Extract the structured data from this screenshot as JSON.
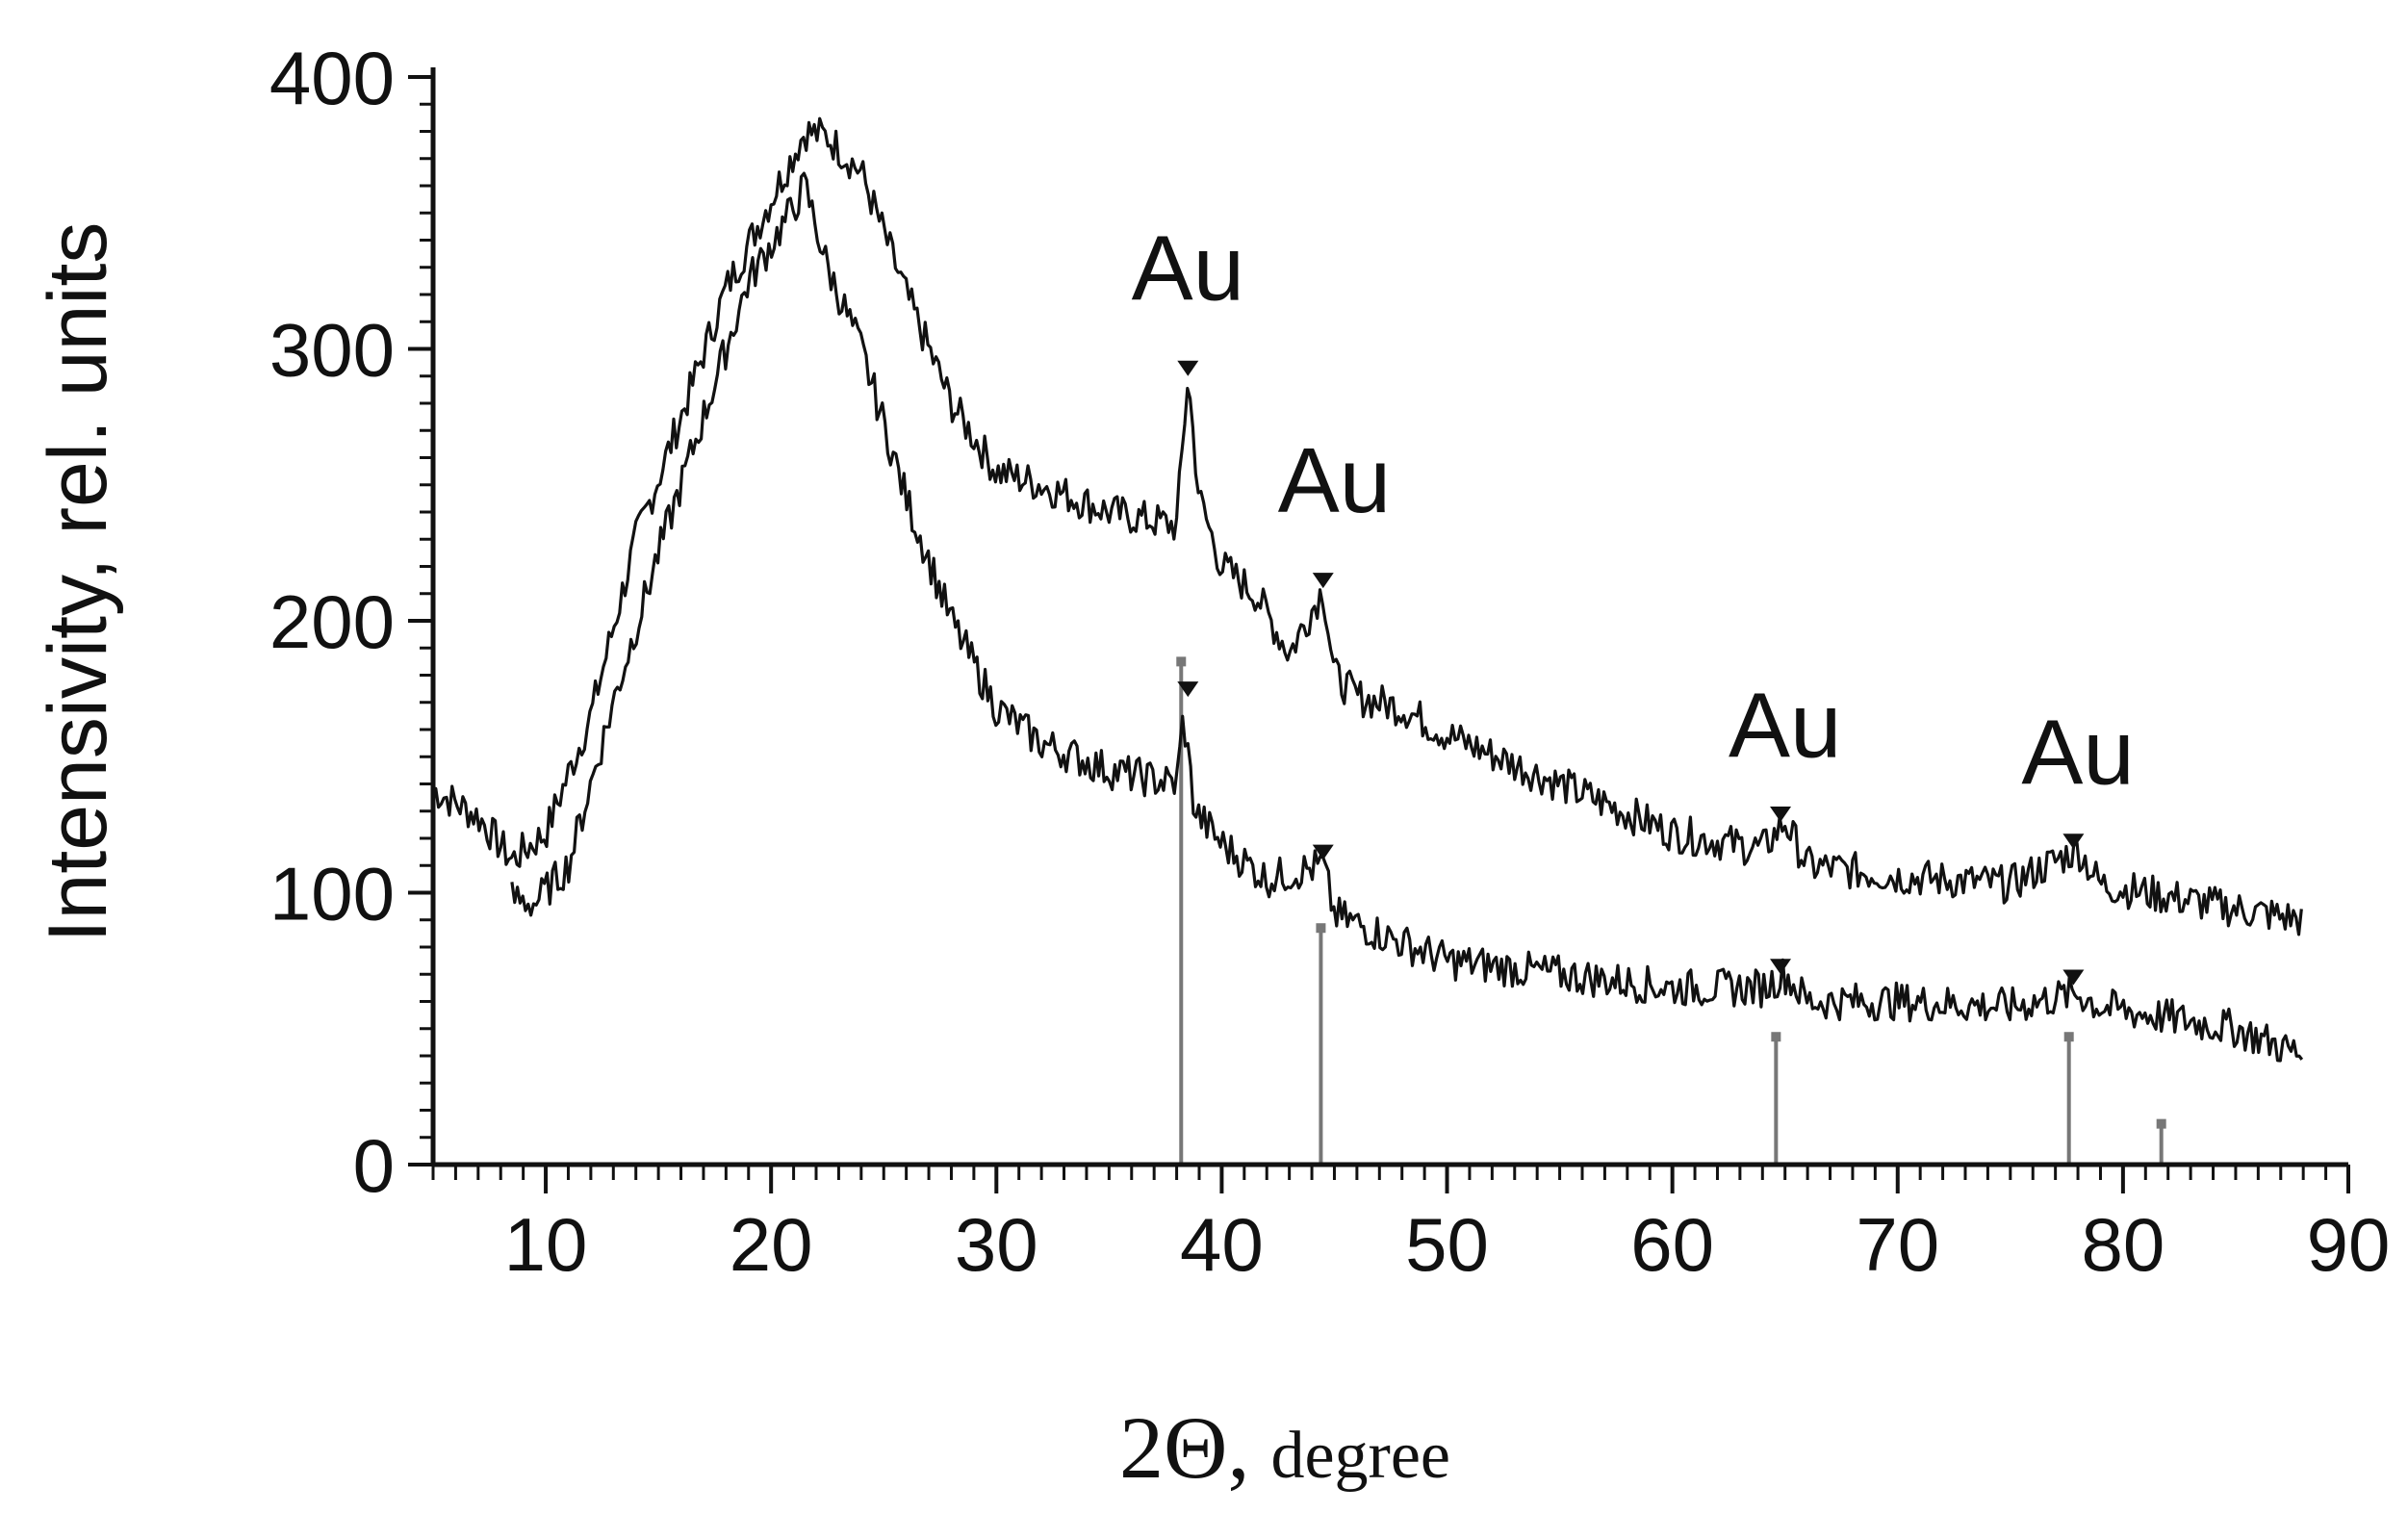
{
  "chart_data": {
    "type": "line",
    "title": "",
    "xlabel": "2Θ, degree",
    "xlabel_main": "2Θ,",
    "xlabel_unit": "degree",
    "ylabel": "Intensivity, rel. units",
    "xlim": [
      5,
      90
    ],
    "ylim": [
      0,
      400
    ],
    "x_ticks": [
      10,
      20,
      30,
      40,
      50,
      60,
      70,
      80,
      90
    ],
    "y_ticks": [
      0,
      100,
      200,
      300,
      400
    ],
    "grid": false,
    "legend": "none",
    "line_color": "#111111",
    "reference_color": "#777777",
    "series": [
      {
        "x": [
          5,
          7,
          8.5,
          10,
          12,
          14,
          16,
          18,
          20,
          21.5,
          22.5,
          24,
          26,
          28,
          30,
          32,
          35,
          38,
          38.5,
          39,
          40,
          41.5,
          43,
          44.5,
          45,
          46,
          48,
          50,
          55,
          60,
          64,
          65,
          66,
          70,
          75,
          78,
          79,
          85,
          88
        ],
        "y": [
          138,
          128,
          112,
          122,
          165,
          230,
          275,
          322,
          355,
          380,
          378,
          365,
          320,
          280,
          255,
          250,
          240,
          235,
          290,
          245,
          220,
          210,
          188,
          212,
          180,
          172,
          168,
          158,
          140,
          122,
          116,
          126,
          110,
          106,
          103,
          116,
          103,
          94,
          90
        ]
      },
      {
        "x": [
          8.5,
          9.5,
          11,
          13,
          15,
          17,
          19,
          21,
          21.5,
          22.5,
          24,
          26,
          28,
          30,
          32,
          35,
          38,
          38.3,
          38.8,
          40,
          42,
          44.5,
          45,
          47,
          50,
          55,
          60,
          64,
          65,
          66,
          70,
          75,
          78,
          79,
          85,
          88
        ],
        "y": [
          98,
          96,
          110,
          170,
          225,
          275,
          325,
          352,
          360,
          330,
          300,
          245,
          200,
          168,
          155,
          145,
          140,
          165,
          130,
          118,
          105,
          110,
          92,
          85,
          75,
          70,
          65,
          65,
          70,
          60,
          60,
          58,
          63,
          58,
          50,
          40
        ]
      }
    ],
    "peak_markers": {
      "upper": [
        [
          38.5,
          290
        ],
        [
          44.5,
          212
        ],
        [
          64.8,
          126
        ],
        [
          77.8,
          116
        ]
      ],
      "lower": [
        [
          38.5,
          172
        ],
        [
          44.5,
          112
        ],
        [
          64.8,
          70
        ],
        [
          77.8,
          66
        ]
      ]
    },
    "reference_lines": [
      {
        "x": 38.2,
        "y": 185
      },
      {
        "x": 44.4,
        "y": 87
      },
      {
        "x": 64.6,
        "y": 47
      },
      {
        "x": 77.6,
        "y": 47
      },
      {
        "x": 81.7,
        "y": 15
      }
    ],
    "annotations": [
      {
        "text": "Au",
        "x": 38.5,
        "y": 318
      },
      {
        "text": "Au",
        "x": 45,
        "y": 240
      },
      {
        "text": "Au",
        "x": 65,
        "y": 150
      },
      {
        "text": "Au",
        "x": 78,
        "y": 140
      }
    ]
  }
}
